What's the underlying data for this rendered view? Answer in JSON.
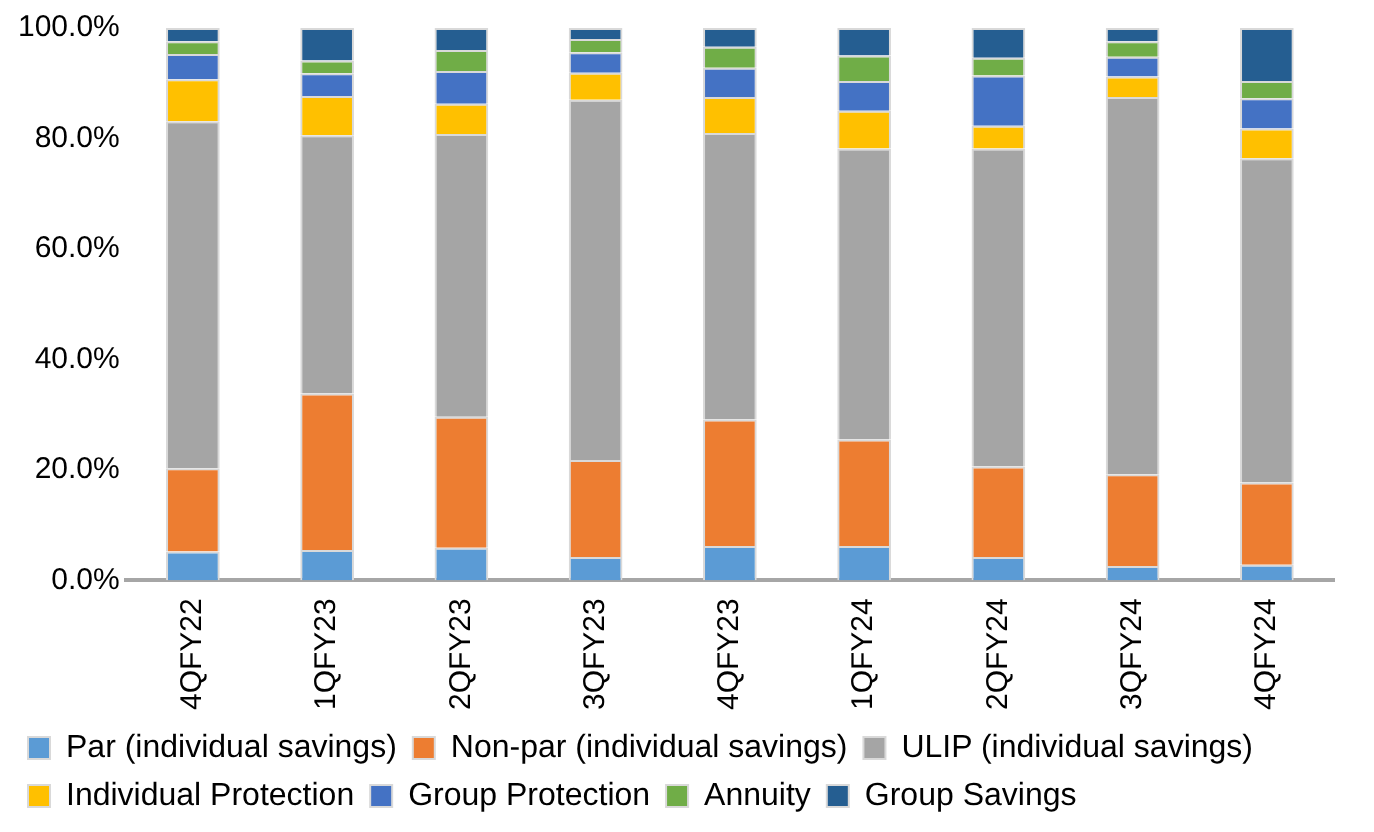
{
  "chart_data": {
    "type": "bar",
    "stacked": true,
    "categories": [
      "4QFY22",
      "1QFY23",
      "2QFY23",
      "3QFY23",
      "4QFY23",
      "1QFY24",
      "2QFY24",
      "3QFY24",
      "4QFY24"
    ],
    "series": [
      {
        "name": "Par (individual savings)",
        "color": "#5b9bd5",
        "values": [
          5.2,
          5.5,
          5.9,
          4.2,
          6.2,
          6.2,
          4.2,
          2.6,
          2.8
        ]
      },
      {
        "name": "Non-par (individual savings)",
        "color": "#ed7d31",
        "values": [
          15.1,
          28.3,
          23.7,
          17.6,
          22.9,
          19.3,
          16.4,
          16.6,
          14.9
        ]
      },
      {
        "name": "ULIP (individual savings)",
        "color": "#a5a5a5",
        "values": [
          62.8,
          46.8,
          51.2,
          65.2,
          51.9,
          52.7,
          57.6,
          68.3,
          58.7
        ]
      },
      {
        "name": "Individual Protection",
        "color": "#ffc000",
        "values": [
          7.6,
          7.1,
          5.5,
          4.9,
          6.5,
          6.8,
          4.1,
          3.7,
          5.4
        ]
      },
      {
        "name": "Group Protection",
        "color": "#4472c4",
        "values": [
          4.6,
          4.1,
          5.9,
          3.7,
          5.3,
          5.4,
          9.1,
          3.6,
          5.5
        ]
      },
      {
        "name": "Annuity",
        "color": "#70ad47",
        "values": [
          2.3,
          2.3,
          3.8,
          2.4,
          3.8,
          4.6,
          3.2,
          2.8,
          3.1
        ]
      },
      {
        "name": "Group Savings",
        "color": "#255e91",
        "values": [
          2.4,
          5.9,
          4.0,
          2.0,
          3.4,
          5.0,
          5.4,
          2.4,
          9.6
        ]
      }
    ],
    "ylim": [
      0,
      100
    ],
    "yticks": [
      {
        "value": 0,
        "label": "0.0%"
      },
      {
        "value": 20,
        "label": "20.0%"
      },
      {
        "value": 40,
        "label": "40.0%"
      },
      {
        "value": 60,
        "label": "60.0%"
      },
      {
        "value": 80,
        "label": "80.0%"
      },
      {
        "value": 100,
        "label": "100.0%"
      }
    ],
    "grid": false,
    "legend": "bottom"
  }
}
